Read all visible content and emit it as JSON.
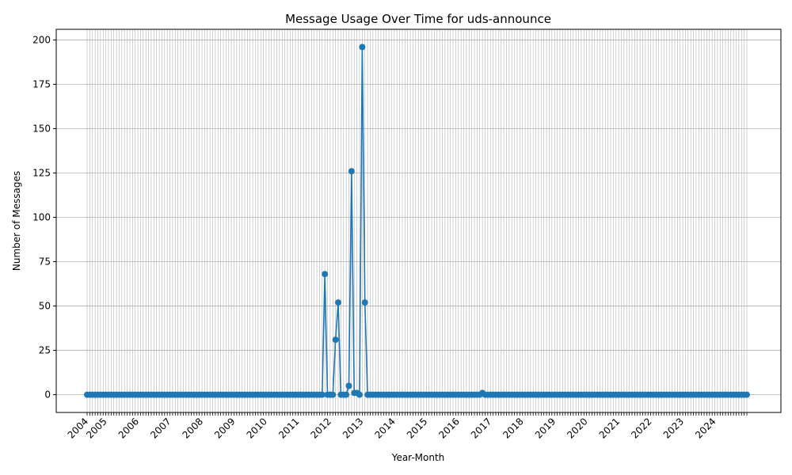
{
  "chart_data": {
    "type": "line",
    "title": "Message Usage Over Time for uds-announce",
    "xlabel": "Year-Month",
    "ylabel": "Number of Messages",
    "x_start": "2004-06",
    "x_end": "2025-01",
    "x_tick_labels": [
      "2004",
      "2005",
      "2006",
      "2007",
      "2008",
      "2009",
      "2010",
      "2011",
      "2012",
      "2013",
      "2014",
      "2015",
      "2016",
      "2017",
      "2018",
      "2019",
      "2020",
      "2021",
      "2022",
      "2023",
      "2024"
    ],
    "y_ticks": [
      0,
      25,
      50,
      75,
      100,
      125,
      150,
      175,
      200
    ],
    "ylim": [
      -10,
      206
    ],
    "grid": true,
    "series_color": "#1f77b4",
    "grid_color": "#b0b0b0",
    "nonzero_points": [
      {
        "x": "2011-11",
        "y": 68
      },
      {
        "x": "2012-03",
        "y": 31
      },
      {
        "x": "2012-04",
        "y": 52
      },
      {
        "x": "2012-08",
        "y": 5
      },
      {
        "x": "2012-09",
        "y": 126
      },
      {
        "x": "2012-10",
        "y": 1
      },
      {
        "x": "2012-11",
        "y": 1
      },
      {
        "x": "2013-01",
        "y": 196
      },
      {
        "x": "2013-02",
        "y": 52
      },
      {
        "x": "2016-10",
        "y": 1
      }
    ]
  }
}
